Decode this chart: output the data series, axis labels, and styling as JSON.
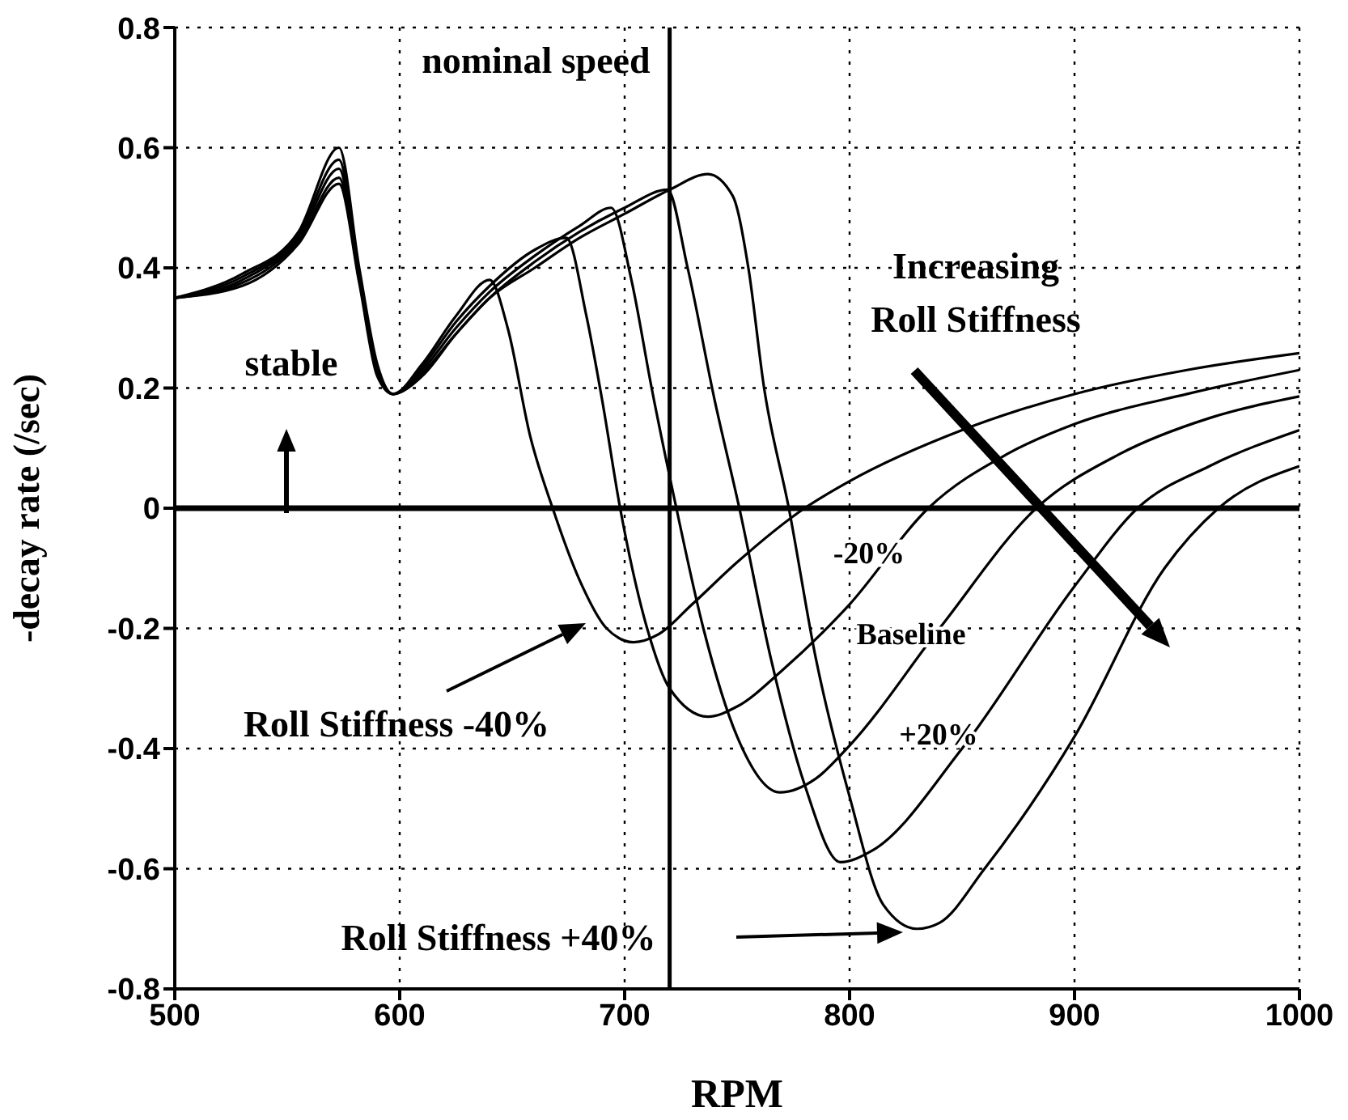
{
  "chart_data": {
    "type": "line",
    "xlabel": "RPM",
    "ylabel": "-decay rate (/sec)",
    "xlim": [
      500,
      1000
    ],
    "xticks": [
      500,
      600,
      700,
      800,
      900,
      1000
    ],
    "ylim": [
      -0.8,
      0.8
    ],
    "yticks": [
      -0.8,
      -0.6,
      -0.4,
      -0.2,
      0,
      0.2,
      0.4,
      0.6,
      0.8
    ],
    "grid": true,
    "line_style": "solid",
    "series": [
      {
        "color": "#000000",
        "x": [
          500,
          530,
          555,
          573,
          582,
          590,
          597,
          610,
          625,
          640,
          648,
          658,
          668,
          680,
          692,
          704,
          715,
          730,
          750,
          780,
          800,
          850,
          900,
          950,
          1000
        ],
        "values": [
          0.35,
          0.39,
          0.46,
          0.6,
          0.4,
          0.24,
          0.19,
          0.24,
          0.32,
          0.38,
          0.3,
          0.12,
          0,
          -0.12,
          -0.2,
          -0.223,
          -0.21,
          -0.16,
          -0.09,
          0,
          0.045,
          0.13,
          0.19,
          0.23,
          0.258
        ]
      },
      {
        "color": "#000000",
        "x": [
          500,
          530,
          555,
          573,
          582,
          590,
          597,
          610,
          625,
          640,
          660,
          674,
          683,
          690,
          698,
          710,
          720,
          737,
          750,
          770,
          800,
          835,
          870,
          900,
          950,
          1000
        ],
        "values": [
          0.35,
          0.385,
          0.455,
          0.58,
          0.39,
          0.235,
          0.19,
          0.235,
          0.31,
          0.37,
          0.43,
          0.45,
          0.32,
          0.18,
          0,
          -0.2,
          -0.3,
          -0.347,
          -0.33,
          -0.27,
          -0.16,
          0,
          0.09,
          0.14,
          0.19,
          0.23
        ]
      },
      {
        "color": "#000000",
        "x": [
          500,
          530,
          555,
          573,
          582,
          590,
          597,
          610,
          625,
          640,
          660,
          680,
          694,
          703,
          712,
          723,
          735,
          750,
          769,
          785,
          800,
          840,
          883,
          920,
          960,
          1000
        ],
        "values": [
          0.35,
          0.38,
          0.45,
          0.565,
          0.385,
          0.23,
          0.19,
          0.23,
          0.3,
          0.36,
          0.42,
          0.47,
          0.5,
          0.38,
          0.2,
          0,
          -0.2,
          -0.38,
          -0.473,
          -0.45,
          -0.395,
          -0.2,
          0,
          0.09,
          0.15,
          0.186
        ]
      },
      {
        "color": "#000000",
        "x": [
          500,
          530,
          555,
          573,
          582,
          590,
          597,
          610,
          625,
          640,
          660,
          680,
          700,
          719,
          728,
          740,
          751,
          765,
          780,
          796,
          810,
          850,
          900,
          928,
          960,
          1000
        ],
        "values": [
          0.35,
          0.375,
          0.445,
          0.55,
          0.38,
          0.225,
          0.19,
          0.225,
          0.29,
          0.35,
          0.41,
          0.46,
          0.5,
          0.53,
          0.4,
          0.18,
          0,
          -0.25,
          -0.46,
          -0.589,
          -0.57,
          -0.4,
          -0.13,
          0,
          0.07,
          0.13
        ]
      },
      {
        "color": "#000000",
        "x": [
          500,
          530,
          555,
          573,
          582,
          590,
          597,
          610,
          625,
          640,
          660,
          680,
          700,
          720,
          737,
          748,
          755,
          762,
          773,
          785,
          800,
          815,
          830,
          840,
          860,
          900,
          940,
          964,
          1000
        ],
        "values": [
          0.35,
          0.37,
          0.44,
          0.54,
          0.375,
          0.22,
          0.19,
          0.22,
          0.29,
          0.35,
          0.4,
          0.45,
          0.49,
          0.53,
          0.556,
          0.52,
          0.4,
          0.2,
          0,
          -0.25,
          -0.48,
          -0.66,
          -0.7,
          -0.69,
          -0.6,
          -0.38,
          -0.1,
          0,
          0.07
        ]
      }
    ],
    "ref_lines": [
      {
        "axis": "x",
        "value": 720,
        "label": "nominal speed",
        "color": "#000000"
      },
      {
        "axis": "y",
        "value": 0,
        "color": "#000000"
      }
    ],
    "annotations": [
      "stable",
      "Increasing Roll Stiffness",
      "-20%",
      "Baseline",
      "+20%",
      "Roll Stiffness -40%",
      "Roll Stiffness +40%"
    ]
  }
}
